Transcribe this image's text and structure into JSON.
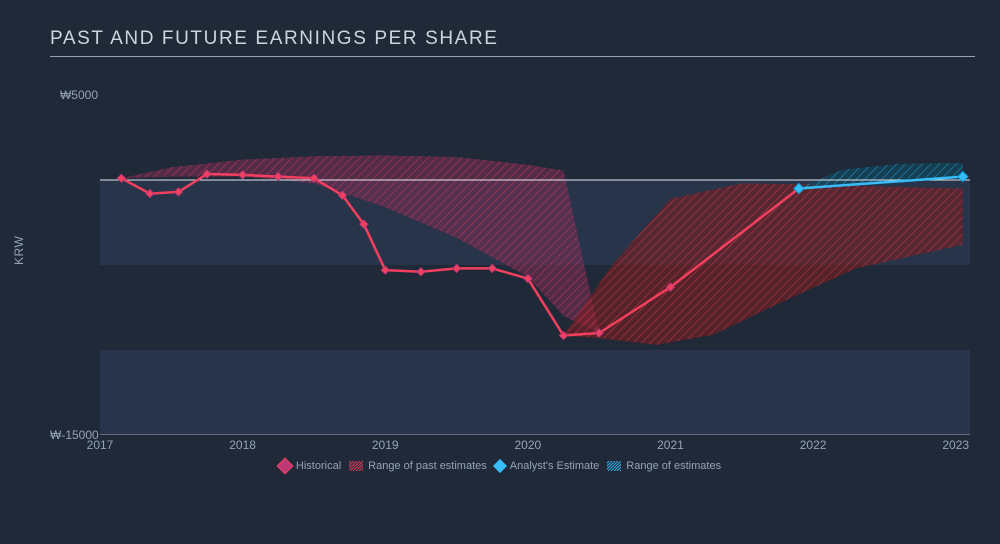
{
  "title": "PAST AND FUTURE EARNINGS PER SHARE",
  "ylabel": "KRW",
  "background_color": "#1f2937",
  "panel_color": "#273449",
  "text_color": "#94a3b8",
  "axis_color": "#94a3b8",
  "zero_line_color": "#e2e8f0",
  "y_axis": {
    "min": -15000,
    "max": 5000,
    "ticks": [
      {
        "value": 5000,
        "label": "₩5000"
      },
      {
        "value": -15000,
        "label": "₩-15000"
      }
    ]
  },
  "x_axis": {
    "min": 2017,
    "max": 2023.1,
    "ticks": [
      2017,
      2018,
      2019,
      2020,
      2021,
      2022,
      2023
    ]
  },
  "series": {
    "historical": {
      "color": "#f43f5e",
      "marker_stroke": "#bd3a77",
      "line_width": 2.5,
      "marker_size": 4,
      "points": [
        [
          2017.15,
          100
        ],
        [
          2017.35,
          -800
        ],
        [
          2017.55,
          -700
        ],
        [
          2017.75,
          350
        ],
        [
          2018.0,
          300
        ],
        [
          2018.25,
          200
        ],
        [
          2018.5,
          100
        ],
        [
          2018.7,
          -900
        ],
        [
          2018.85,
          -2600
        ],
        [
          2019.0,
          -5300
        ],
        [
          2019.25,
          -5400
        ],
        [
          2019.5,
          -5200
        ],
        [
          2019.75,
          -5200
        ],
        [
          2020.0,
          -5800
        ],
        [
          2020.25,
          -9150
        ],
        [
          2020.5,
          -9000
        ],
        [
          2021.0,
          -6300
        ],
        [
          2021.9,
          -500
        ]
      ]
    },
    "analyst": {
      "color": "#38bdf8",
      "line_width": 2.5,
      "marker_size": 5,
      "points": [
        [
          2021.9,
          -500
        ],
        [
          2023.05,
          200
        ]
      ]
    },
    "past_range": {
      "fill": "#7c2d55",
      "hatch": "#f43f5e",
      "opacity": 0.55,
      "upper": [
        [
          2017.15,
          100
        ],
        [
          2017.5,
          750
        ],
        [
          2018.0,
          1200
        ],
        [
          2018.5,
          1400
        ],
        [
          2019.0,
          1450
        ],
        [
          2019.5,
          1350
        ],
        [
          2020.0,
          900
        ],
        [
          2020.25,
          550
        ],
        [
          2020.5,
          -9000
        ]
      ],
      "lower": [
        [
          2017.15,
          100
        ],
        [
          2017.5,
          200
        ],
        [
          2018.0,
          200
        ],
        [
          2018.5,
          -200
        ],
        [
          2019.0,
          -1600
        ],
        [
          2019.5,
          -3400
        ],
        [
          2020.0,
          -5700
        ],
        [
          2020.25,
          -8000
        ],
        [
          2020.5,
          -9000
        ]
      ]
    },
    "future_range": {
      "fill": "#7f1d1d",
      "hatch": "#f43f5e",
      "opacity": 0.55,
      "upper": [
        [
          2020.25,
          -9150
        ],
        [
          2020.6,
          -4900
        ],
        [
          2021.0,
          -1100
        ],
        [
          2021.5,
          -200
        ],
        [
          2022.0,
          -250
        ],
        [
          2022.5,
          -400
        ],
        [
          2023.05,
          -500
        ]
      ],
      "lower": [
        [
          2020.25,
          -9150
        ],
        [
          2020.5,
          -9300
        ],
        [
          2020.9,
          -9700
        ],
        [
          2021.3,
          -9100
        ],
        [
          2021.8,
          -7100
        ],
        [
          2022.3,
          -5200
        ],
        [
          2023.05,
          -3800
        ]
      ]
    },
    "est_range": {
      "fill": "#0e4f66",
      "hatch": "#38bdf8",
      "opacity": 0.6,
      "upper": [
        [
          2021.9,
          -500
        ],
        [
          2022.2,
          600
        ],
        [
          2022.6,
          950
        ],
        [
          2023.05,
          1000
        ]
      ],
      "lower": [
        [
          2021.9,
          -500
        ],
        [
          2022.3,
          -350
        ],
        [
          2023.05,
          200
        ]
      ]
    }
  },
  "legend": {
    "historical": "Historical",
    "past_range": "Range of past estimates",
    "analyst": "Analyst's Estimate",
    "est_range": "Range of estimates"
  }
}
